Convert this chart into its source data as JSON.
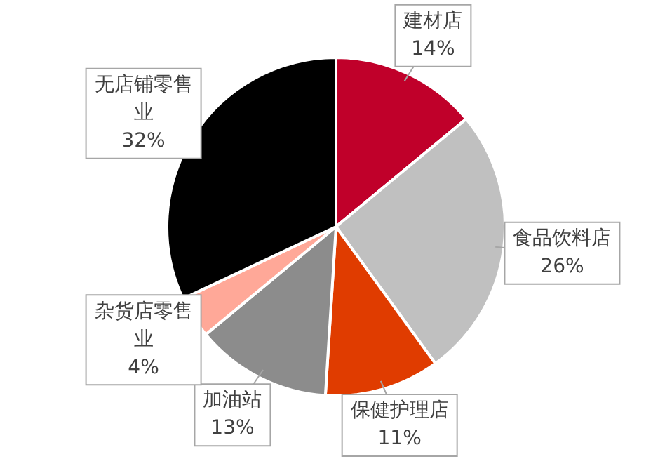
{
  "chart_data": {
    "type": "pie",
    "categories": [
      "建材店",
      "食品饮料店",
      "保健护理店",
      "加油站",
      "杂货店零售业",
      "无店铺零售业"
    ],
    "values": [
      14,
      26,
      11,
      13,
      4,
      32
    ],
    "colors": [
      "#c0002a",
      "#c0c0c0",
      "#e03c00",
      "#8c8c8c",
      "#ffa898",
      "#000000"
    ],
    "value_labels": [
      "14%",
      "26%",
      "11%",
      "13%",
      "4%",
      "32%"
    ],
    "legend": false
  }
}
